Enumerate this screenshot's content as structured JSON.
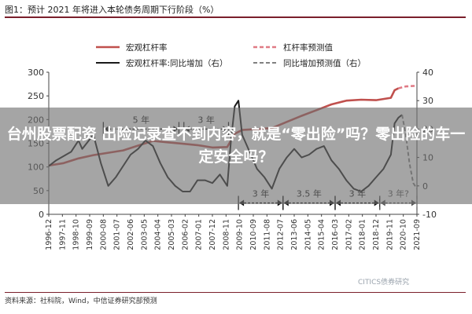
{
  "figure_title": "图1：预计 2021 年将进入本轮债务周期下行阶段（%）",
  "source_note": "资料来源：社科院，Wind，中信证券研究部预测",
  "watermark": "CITICS债券研究",
  "overlay_headline": "台州股票配资 出险记录查不到内容，就是“零出险”吗？零出险的车一定安全吗？",
  "colors": {
    "leverage": "#c0504d",
    "yoy": "#1a1a1a",
    "forecast_leverage": "#e07a85",
    "forecast_yoy": "#808080",
    "axis": "#444444",
    "bracket": "#111111"
  },
  "chart_data": {
    "type": "line",
    "x": [
      "1996-12",
      "1997-11",
      "1998-10",
      "1999-09",
      "2000-08",
      "2001-07",
      "2002-06",
      "2003-05",
      "2004-04",
      "2005-03",
      "2006-02",
      "2007-01",
      "2007-12",
      "2008-11",
      "2009-10",
      "2010-09",
      "2011-08",
      "2012-07",
      "2013-06",
      "2014-05",
      "2015-04",
      "2016-03",
      "2017-02",
      "2018-01",
      "2018-12",
      "2019-11",
      "2020-10",
      "2021-09"
    ],
    "x_start": "1996-12",
    "x_end": "2021-09",
    "y_left": {
      "range": [
        0,
        300
      ],
      "ticks": [
        0,
        50,
        100,
        150,
        200,
        250,
        300
      ]
    },
    "y_right": {
      "range": [
        -10,
        40
      ],
      "ticks": [
        -10,
        0,
        10,
        20,
        30,
        40
      ]
    },
    "legend": [
      "宏观杠杆率",
      "杠杆率预测值",
      "宏观杠杆率:同比增加（右）",
      "同比增加预测值（右）"
    ],
    "legend_position": "top",
    "series": [
      {
        "name": "宏观杠杆率",
        "axis": "left",
        "points": [
          [
            "1996-12",
            103
          ],
          [
            "1997-12",
            108
          ],
          [
            "1998-12",
            118
          ],
          [
            "1999-12",
            125
          ],
          [
            "2000-12",
            130
          ],
          [
            "2001-12",
            135
          ],
          [
            "2002-12",
            145
          ],
          [
            "2003-12",
            155
          ],
          [
            "2004-12",
            152
          ],
          [
            "2005-12",
            149
          ],
          [
            "2006-12",
            146
          ],
          [
            "2007-12",
            141
          ],
          [
            "2008-12",
            142
          ],
          [
            "2009-06",
            170
          ],
          [
            "2009-12",
            178
          ],
          [
            "2010-12",
            180
          ],
          [
            "2011-12",
            182
          ],
          [
            "2012-12",
            195
          ],
          [
            "2013-12",
            208
          ],
          [
            "2014-12",
            220
          ],
          [
            "2015-12",
            232
          ],
          [
            "2016-12",
            240
          ],
          [
            "2017-12",
            242
          ],
          [
            "2018-12",
            241
          ],
          [
            "2019-12",
            246
          ],
          [
            "2020-03",
            262
          ],
          [
            "2020-06",
            266
          ]
        ]
      },
      {
        "name": "杠杆率预测值",
        "axis": "left",
        "points": [
          [
            "2020-06",
            266
          ],
          [
            "2020-12",
            270
          ],
          [
            "2021-06",
            271
          ],
          [
            "2021-09",
            271
          ]
        ]
      },
      {
        "name": "宏观杠杆率:同比增加（右）",
        "axis": "right",
        "points": [
          [
            "1996-12",
            7
          ],
          [
            "1997-06",
            9
          ],
          [
            "1998-06",
            12
          ],
          [
            "1998-12",
            16
          ],
          [
            "1999-03",
            13
          ],
          [
            "1999-12",
            18
          ],
          [
            "2000-06",
            8
          ],
          [
            "2000-12",
            0
          ],
          [
            "2001-06",
            3
          ],
          [
            "2001-12",
            7
          ],
          [
            "2002-06",
            11
          ],
          [
            "2002-12",
            13
          ],
          [
            "2003-06",
            16
          ],
          [
            "2003-12",
            14
          ],
          [
            "2004-06",
            8
          ],
          [
            "2004-12",
            3
          ],
          [
            "2005-06",
            0
          ],
          [
            "2005-12",
            -2
          ],
          [
            "2006-06",
            -2
          ],
          [
            "2006-12",
            2
          ],
          [
            "2007-06",
            2
          ],
          [
            "2007-12",
            1
          ],
          [
            "2008-06",
            4
          ],
          [
            "2008-12",
            0
          ],
          [
            "2009-03",
            16
          ],
          [
            "2009-06",
            28
          ],
          [
            "2009-09",
            30
          ],
          [
            "2009-12",
            18
          ],
          [
            "2010-06",
            12
          ],
          [
            "2010-12",
            6
          ],
          [
            "2011-06",
            3
          ],
          [
            "2011-12",
            -1
          ],
          [
            "2012-06",
            6
          ],
          [
            "2012-12",
            10
          ],
          [
            "2013-06",
            13
          ],
          [
            "2013-12",
            10
          ],
          [
            "2014-06",
            11
          ],
          [
            "2014-12",
            13
          ],
          [
            "2015-06",
            14
          ],
          [
            "2015-12",
            9
          ],
          [
            "2016-06",
            6
          ],
          [
            "2016-12",
            2
          ],
          [
            "2017-06",
            -1
          ],
          [
            "2017-12",
            -2
          ],
          [
            "2018-06",
            0
          ],
          [
            "2018-12",
            3
          ],
          [
            "2019-06",
            6
          ],
          [
            "2019-12",
            11
          ],
          [
            "2020-03",
            22
          ],
          [
            "2020-06",
            24
          ],
          [
            "2020-09",
            25
          ]
        ]
      },
      {
        "name": "同比增加预测值（右）",
        "axis": "right",
        "points": [
          [
            "2020-09",
            25
          ],
          [
            "2020-12",
            18
          ],
          [
            "2021-03",
            8
          ],
          [
            "2021-06",
            1
          ],
          [
            "2021-09",
            -1
          ]
        ]
      }
    ],
    "annotations": [
      {
        "label": "5 年",
        "from": "2000-08",
        "to": "2005-09",
        "y": 20,
        "axis": "right"
      },
      {
        "label": "3 年",
        "from": "2006-01",
        "to": "2009-01",
        "y": 20,
        "axis": "right"
      },
      {
        "label": "3 年",
        "from": "2009-09",
        "to": "2012-09",
        "y": -6,
        "axis": "right"
      },
      {
        "label": "3.5 年",
        "from": "2012-09",
        "to": "2016-03",
        "y": -6,
        "axis": "right"
      },
      {
        "label": "3 年",
        "from": "2016-03",
        "to": "2019-03",
        "y": -6,
        "axis": "right"
      },
      {
        "label": "3 年?",
        "from": "2019-03",
        "to": "2021-09",
        "y": -6,
        "axis": "right",
        "dashed": true
      }
    ]
  }
}
